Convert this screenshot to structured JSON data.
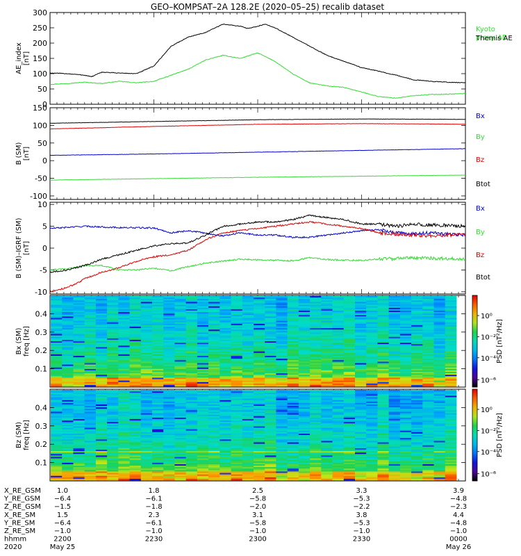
{
  "title": "GEO–KOMPSAT–2A 128.2E (2020–05–25) recalib dataset",
  "chart_data": [
    {
      "type": "line",
      "ylabel": [
        "AE_index",
        "[nT]"
      ],
      "ylim": [
        0,
        300
      ],
      "yticks": [
        0,
        50,
        100,
        150,
        200,
        250,
        300
      ],
      "xlim": [
        0,
        120
      ],
      "x_unit": "minutes since 2200 UT",
      "series": [
        {
          "name": "Kyoto proxy AE",
          "legend_lines": [
            "Kyoto",
            "proxy AE"
          ],
          "color": "#33dd33",
          "x": [
            0,
            5,
            10,
            15,
            20,
            25,
            30,
            35,
            40,
            45,
            50,
            55,
            60,
            65,
            70,
            75,
            80,
            85,
            90,
            95,
            100,
            105,
            110,
            115,
            120
          ],
          "values": [
            65,
            68,
            72,
            68,
            75,
            70,
            75,
            95,
            115,
            145,
            160,
            150,
            168,
            140,
            100,
            70,
            60,
            55,
            40,
            25,
            20,
            28,
            32,
            33,
            35
          ]
        },
        {
          "name": "Themis AE",
          "legend_lines": [
            "Themis AE"
          ],
          "color": "#000000",
          "x": [
            0,
            5,
            10,
            12,
            15,
            20,
            25,
            30,
            35,
            40,
            45,
            50,
            55,
            57,
            60,
            62,
            65,
            70,
            75,
            80,
            85,
            90,
            95,
            100,
            105,
            110,
            115,
            120
          ],
          "values": [
            102,
            100,
            95,
            90,
            105,
            102,
            100,
            125,
            190,
            220,
            235,
            262,
            255,
            248,
            255,
            262,
            250,
            220,
            190,
            160,
            140,
            120,
            108,
            95,
            80,
            75,
            72,
            70
          ]
        }
      ]
    },
    {
      "type": "line",
      "ylabel": [
        "B (SM)",
        "[nT]"
      ],
      "ylim": [
        -110,
        150
      ],
      "yticks": [
        -100,
        -50,
        0,
        50,
        100,
        150
      ],
      "xlim": [
        0,
        120
      ],
      "series": [
        {
          "name": "Bx",
          "color": "#0000cc",
          "x": [
            0,
            30,
            60,
            90,
            120
          ],
          "values": [
            15,
            19,
            24,
            29,
            34
          ]
        },
        {
          "name": "By",
          "color": "#33dd33",
          "x": [
            0,
            30,
            60,
            90,
            120
          ],
          "values": [
            -55,
            -51,
            -47,
            -44,
            -41
          ]
        },
        {
          "name": "Bz",
          "color": "#dd0000",
          "x": [
            0,
            30,
            60,
            90,
            110,
            120
          ],
          "values": [
            90,
            97,
            103,
            105,
            104,
            103
          ]
        },
        {
          "name": "Btot",
          "color": "#000000",
          "x": [
            0,
            30,
            60,
            90,
            120
          ],
          "values": [
            106,
            111,
            116,
            118,
            117
          ]
        }
      ]
    },
    {
      "type": "line",
      "ylabel": [
        "B (SM)–IGRF (SM)",
        "[nT]"
      ],
      "ylim": [
        -10.5,
        10.5
      ],
      "yticks": [
        -10,
        -5,
        0,
        5,
        10
      ],
      "xlim": [
        0,
        120
      ],
      "series": [
        {
          "name": "Bx",
          "color": "#0000cc",
          "x": [
            0,
            10,
            20,
            30,
            35,
            40,
            45,
            50,
            55,
            60,
            65,
            70,
            75,
            80,
            85,
            90,
            95,
            100,
            105,
            110,
            115,
            120
          ],
          "values": [
            4.5,
            5,
            4.7,
            4.6,
            3.5,
            4,
            3.4,
            2.8,
            3.5,
            3,
            3,
            2.5,
            2.5,
            3,
            3.5,
            4,
            4.2,
            3.5,
            3.2,
            3.5,
            3.2,
            3
          ]
        },
        {
          "name": "By",
          "color": "#33dd33",
          "x": [
            0,
            5,
            10,
            15,
            20,
            25,
            30,
            35,
            40,
            45,
            50,
            55,
            60,
            65,
            70,
            75,
            80,
            85,
            90,
            95,
            100,
            105,
            110,
            115,
            120
          ],
          "values": [
            -5,
            -4.8,
            -4,
            -4,
            -5,
            -5,
            -4.6,
            -5.2,
            -4.2,
            -3.4,
            -3,
            -2.5,
            -2.7,
            -2.8,
            -2.9,
            -2.2,
            -2.6,
            -2.8,
            -2.8,
            -2.5,
            -2.4,
            -2.2,
            -2.3,
            -2.4,
            -2.5
          ]
        },
        {
          "name": "Bz",
          "color": "#dd0000",
          "x": [
            0,
            5,
            8,
            10,
            15,
            20,
            25,
            30,
            35,
            40,
            45,
            50,
            55,
            60,
            65,
            70,
            75,
            80,
            85,
            90,
            95,
            100,
            105,
            110,
            115,
            120
          ],
          "values": [
            -10,
            -9,
            -8,
            -7,
            -5.5,
            -4.5,
            -3,
            -2,
            -1.5,
            -0.5,
            2,
            3.5,
            4,
            4.5,
            5,
            5.5,
            6,
            5.5,
            5,
            4.5,
            3.5,
            3.2,
            3,
            2.8,
            3,
            3
          ]
        },
        {
          "name": "Btot",
          "color": "#000000",
          "x": [
            0,
            5,
            10,
            15,
            20,
            25,
            30,
            35,
            40,
            45,
            50,
            55,
            60,
            65,
            70,
            75,
            80,
            85,
            90,
            95,
            100,
            105,
            110,
            115,
            120
          ],
          "values": [
            -5.5,
            -5,
            -4,
            -2.5,
            -1.5,
            -0.5,
            0.5,
            1,
            1.2,
            3,
            5,
            5.5,
            6,
            6,
            6.5,
            7.5,
            7,
            6.5,
            5.5,
            5.5,
            5,
            5.5,
            5.3,
            5.2,
            5
          ]
        }
      ]
    },
    {
      "type": "heatmap",
      "ylabel": [
        "Bx (SM)",
        "freq [Hz]"
      ],
      "ylim": [
        0,
        0.5
      ],
      "yticks": [
        0.1,
        0.2,
        0.3,
        0.4
      ],
      "colorbar_label": "PSD [nT²/Hz]",
      "colorbar_ticks": [
        "10⁰",
        "10⁻²",
        "10⁻⁴",
        "10⁻⁶"
      ]
    },
    {
      "type": "heatmap",
      "ylabel": [
        "Bz (SM)",
        "freq [Hz]"
      ],
      "ylim": [
        0,
        0.5
      ],
      "yticks": [
        0.1,
        0.2,
        0.3,
        0.4
      ],
      "colorbar_label": "PSD [nT²/Hz]",
      "colorbar_ticks": [
        "10⁰",
        "10⁻²",
        "10⁻⁴",
        "10⁻⁶"
      ]
    }
  ],
  "ephemeris": {
    "row_labels": [
      "X_RE_GSM",
      "Y_RE_GSM",
      "Z_RE_GSM",
      "X_RE_SM",
      "Y_RE_SM",
      "Z_RE_SM",
      "hhmm",
      "2020"
    ],
    "columns": [
      {
        "x": 0,
        "values": [
          "1.0",
          "−6.4",
          "−1.5",
          "1.5",
          "−6.4",
          "−1.0",
          "2200",
          "May 25"
        ]
      },
      {
        "x": 30,
        "values": [
          "1.8",
          "−6.1",
          "−1.8",
          "2.3",
          "−6.1",
          "−1.0",
          "2230",
          ""
        ]
      },
      {
        "x": 60,
        "values": [
          "2.5",
          "−5.8",
          "−2.0",
          "3.1",
          "−5.8",
          "−1.0",
          "2300",
          ""
        ]
      },
      {
        "x": 90,
        "values": [
          "3.3",
          "−5.3",
          "−2.2",
          "3.8",
          "−5.3",
          "−1.0",
          "2330",
          ""
        ]
      },
      {
        "x": 120,
        "values": [
          "3.9",
          "−4.8",
          "−2.3",
          "4.4",
          "−4.8",
          "−1.0",
          "0000",
          "May 26"
        ]
      }
    ]
  }
}
